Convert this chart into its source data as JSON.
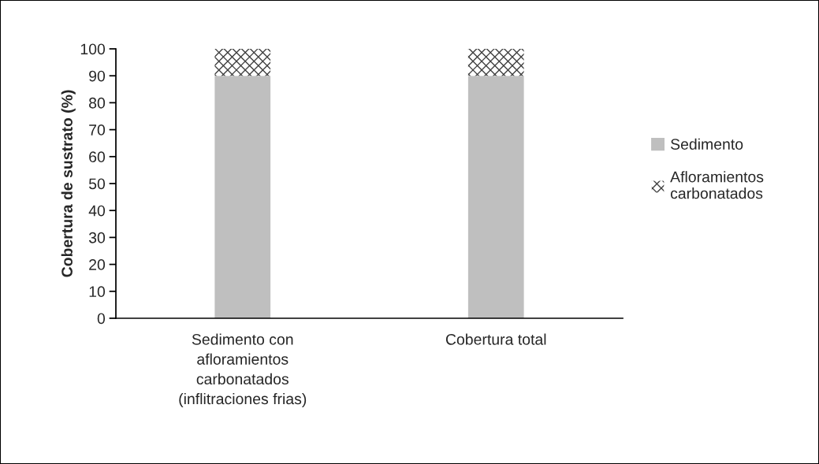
{
  "chart_data": {
    "type": "bar",
    "stacked": true,
    "ylabel": "Cobertura de sustrato (%)",
    "categories": [
      "Sedimento con\nafloramientos\ncarbonatados\n(inflitraciones frias)",
      "Cobertura total"
    ],
    "series": [
      {
        "name": "Sedimento",
        "color": "#bfbfbf",
        "values": [
          90,
          90
        ]
      },
      {
        "name": "Afloramientos\ncarbonatados",
        "color": "#404040",
        "values": [
          10,
          10
        ]
      }
    ],
    "ylim": [
      0,
      100
    ],
    "yticks": [
      0,
      10,
      20,
      30,
      40,
      50,
      60,
      70,
      80,
      90,
      100
    ],
    "grid": false,
    "legend": "right"
  }
}
